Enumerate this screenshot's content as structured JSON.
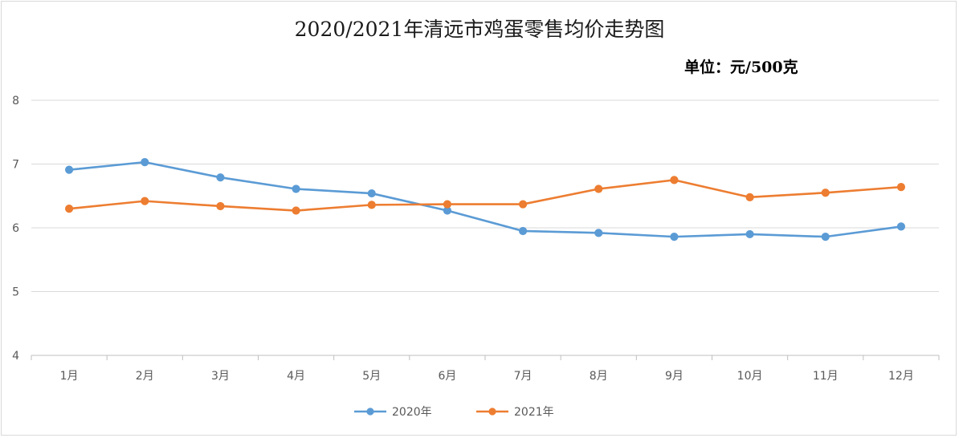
{
  "title": "2020/2021年清远市鸡蛋零售均价走势图",
  "unit_note": "单位：元/500克",
  "chart_data": {
    "type": "line",
    "title": "2020/2021年清远市鸡蛋零售均价走势图",
    "categories": [
      "1月",
      "2月",
      "3月",
      "4月",
      "5月",
      "6月",
      "7月",
      "8月",
      "9月",
      "10月",
      "11月",
      "12月"
    ],
    "series": [
      {
        "name": "2020年",
        "color": "#5b9bd5",
        "values": [
          6.91,
          7.03,
          6.79,
          6.61,
          6.54,
          6.27,
          5.95,
          5.92,
          5.86,
          5.9,
          5.86,
          6.02
        ]
      },
      {
        "name": "2021年",
        "color": "#ed7d31",
        "values": [
          6.3,
          6.42,
          6.34,
          6.27,
          6.36,
          6.37,
          6.37,
          6.61,
          6.75,
          6.48,
          6.55,
          6.64
        ]
      }
    ],
    "ylim": [
      4,
      8
    ],
    "yticks": [
      "4",
      "5",
      "6",
      "7",
      "8"
    ],
    "grid": true,
    "legend_position": "bottom"
  }
}
